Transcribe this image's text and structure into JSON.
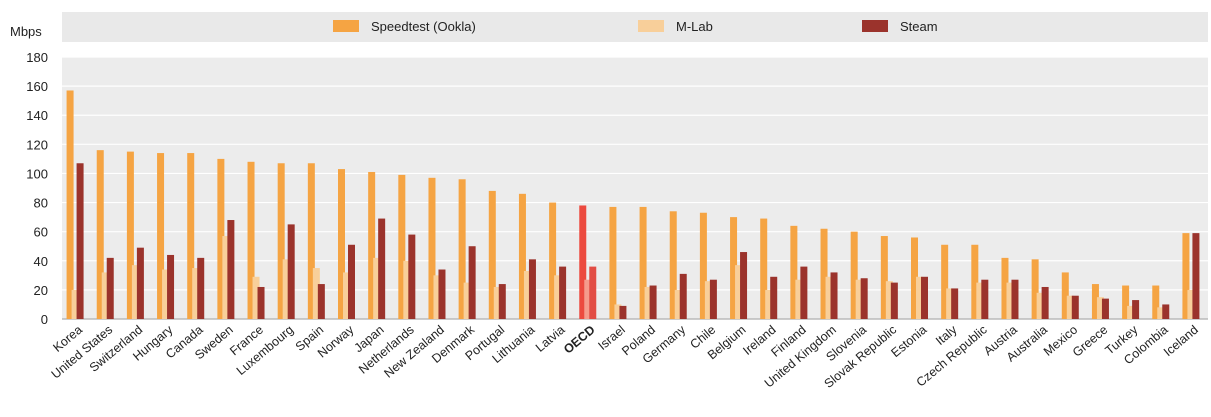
{
  "chart_data": {
    "type": "bar",
    "ylabel": "Mbps",
    "ylim": [
      0,
      180
    ],
    "yticks": [
      0,
      20,
      40,
      60,
      80,
      100,
      120,
      140,
      160,
      180
    ],
    "grid": true,
    "legend_position": "top",
    "categories": [
      "Korea",
      "United States",
      "Switzerland",
      "Hungary",
      "Canada",
      "Sweden",
      "France",
      "Luxembourg",
      "Spain",
      "Norway",
      "Japan",
      "Netherlands",
      "New Zealand",
      "Denmark",
      "Portugal",
      "Lithuania",
      "Latvia",
      "OECD",
      "Israel",
      "Poland",
      "Germany",
      "Chile",
      "Belgium",
      "Ireland",
      "Finland",
      "United Kingdom",
      "Slovenia",
      "Slovak Republic",
      "Estonia",
      "Italy",
      "Czech Republic",
      "Austria",
      "Australia",
      "Mexico",
      "Greece",
      "Turkey",
      "Colombia",
      "Iceland"
    ],
    "highlight_category": "OECD",
    "series": [
      {
        "name": "Speedtest (Ookla)",
        "color": "#f5a443",
        "highlight_color": "#ec4a3f",
        "values": [
          157,
          116,
          115,
          114,
          114,
          110,
          108,
          107,
          107,
          103,
          101,
          99,
          97,
          96,
          88,
          86,
          80,
          78,
          77,
          77,
          74,
          73,
          70,
          69,
          64,
          62,
          60,
          57,
          56,
          51,
          51,
          42,
          41,
          32,
          24,
          23,
          23,
          59
        ]
      },
      {
        "name": "M-Lab",
        "color": "#f8cf9a",
        "highlight_color": "#f59b8c",
        "values": [
          20,
          32,
          37,
          34,
          35,
          57,
          29,
          41,
          35,
          32,
          42,
          40,
          30,
          25,
          22,
          33,
          30,
          27,
          10,
          22,
          20,
          26,
          37,
          20,
          27,
          29,
          27,
          26,
          29,
          21,
          25,
          25,
          18,
          16,
          15,
          9,
          8,
          20
        ]
      },
      {
        "name": "Steam",
        "color": "#9b332c",
        "highlight_color": "#e24d45",
        "values": [
          107,
          42,
          49,
          44,
          42,
          68,
          22,
          65,
          24,
          51,
          69,
          58,
          34,
          50,
          24,
          41,
          36,
          36,
          9,
          23,
          31,
          27,
          46,
          29,
          36,
          32,
          28,
          25,
          29,
          21,
          27,
          27,
          22,
          16,
          14,
          13,
          10,
          59
        ]
      }
    ]
  }
}
